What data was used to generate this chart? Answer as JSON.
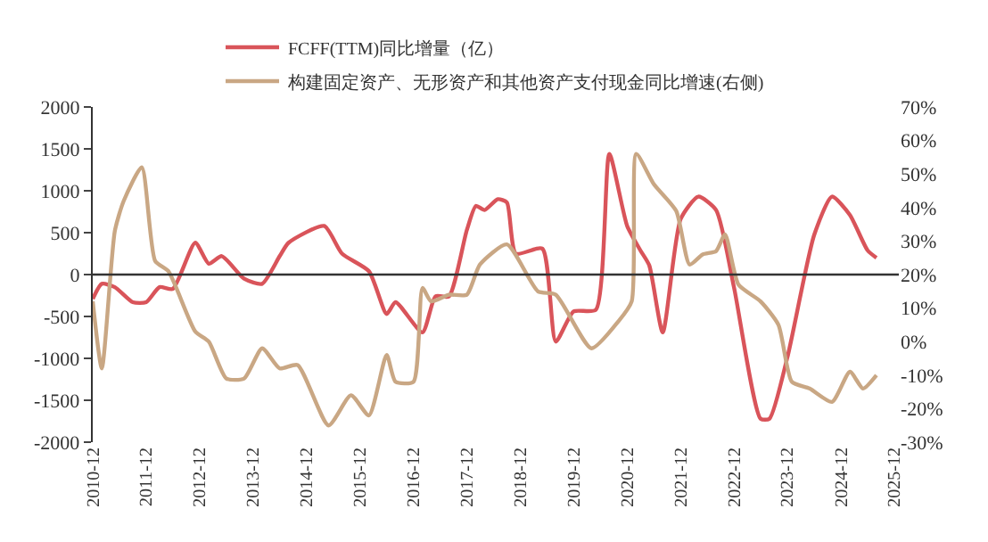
{
  "chart_data": {
    "type": "line",
    "x": [
      "2010-12",
      "2011-02",
      "2011-05",
      "2011-09",
      "2011-12",
      "2012-03",
      "2012-06",
      "2012-11",
      "2013-02",
      "2013-05",
      "2013-10",
      "2014-02",
      "2014-06",
      "2014-08",
      "2015-04",
      "2015-08",
      "2016-02",
      "2016-06",
      "2016-08",
      "2017-02",
      "2017-05",
      "2017-08",
      "2017-12",
      "2018-02",
      "2018-04",
      "2018-07",
      "2018-09",
      "2018-11",
      "2019-05",
      "2019-08",
      "2019-12",
      "2020-05",
      "2020-08",
      "2020-12",
      "2021-03",
      "2021-05",
      "2021-08",
      "2021-12",
      "2022-04",
      "2022-08",
      "2022-12",
      "2023-06",
      "2023-08",
      "2023-12",
      "2024-06",
      "2024-10",
      "2025-02",
      "2025-06",
      "2025-08"
    ],
    "series": [
      {
        "name": "FCFF(TTM)同比增量（亿）",
        "color": "#d9545a",
        "values": [
          -290,
          -110,
          -150,
          -330,
          -330,
          -150,
          -170,
          380,
          130,
          220,
          -50,
          -110,
          220,
          380,
          580,
          250,
          40,
          -470,
          -330,
          -690,
          -260,
          -260,
          530,
          820,
          770,
          900,
          860,
          250,
          310,
          -800,
          -440,
          -420,
          1440,
          580,
          290,
          110,
          -690,
          660,
          930,
          770,
          -150,
          -1720,
          -1720,
          -990,
          470,
          930,
          710,
          290,
          200
        ]
      },
      {
        "name": "构建固定资产、无形资产和其他资产支付现金同比增速(右侧)",
        "color": "#c9a784",
        "axis": "y2",
        "x": [
          "2010-12",
          "2011-02",
          "2011-05",
          "2011-07",
          "2011-11",
          "2012-02",
          "2012-05",
          "2012-11",
          "2013-02",
          "2013-06",
          "2013-10",
          "2014-02",
          "2014-06",
          "2014-10",
          "2015-05",
          "2015-10",
          "2016-02",
          "2016-06",
          "2016-08",
          "2016-12",
          "2017-02",
          "2017-04",
          "2017-08",
          "2017-12",
          "2018-03",
          "2018-09",
          "2019-04",
          "2019-08",
          "2020-04",
          "2020-10",
          "2021-01",
          "2021-02",
          "2021-06",
          "2021-11",
          "2022-02",
          "2022-05",
          "2022-08",
          "2022-10",
          "2023-01",
          "2023-06",
          "2023-10",
          "2024-01",
          "2024-05",
          "2024-10",
          "2025-02",
          "2025-05",
          "2025-08"
        ],
        "values": [
          12,
          -8,
          33,
          42,
          52,
          24,
          21,
          3,
          0,
          -11,
          -11,
          -2,
          -8,
          -7,
          -25,
          -16,
          -22,
          -4,
          -12,
          -12,
          16,
          12,
          14,
          14,
          23,
          29,
          15,
          14,
          -2,
          6,
          12,
          56,
          47,
          39,
          23,
          26,
          27,
          32,
          17,
          12,
          5,
          -12,
          -14,
          -18,
          -9,
          -14,
          -10
        ]
      }
    ],
    "xlim": [
      "2010-12",
      "2026-01"
    ],
    "xticks": [
      "2010-12",
      "2011-12",
      "2012-12",
      "2013-12",
      "2014-12",
      "2015-12",
      "2016-12",
      "2017-12",
      "2018-12",
      "2019-12",
      "2020-12",
      "2021-12",
      "2022-12",
      "2023-12",
      "2024-12",
      "2025-12"
    ],
    "ylim": [
      -2000,
      2000
    ],
    "yticks": [
      -2000,
      -1500,
      -1000,
      -500,
      0,
      500,
      1000,
      1500,
      2000
    ],
    "y2lim": [
      -30,
      70
    ],
    "y2ticks": [
      {
        "value": -30,
        "label": "-30%"
      },
      {
        "value": -20,
        "label": "-20%"
      },
      {
        "value": -10,
        "label": "-10%"
      },
      {
        "value": 0,
        "label": "0%"
      },
      {
        "value": 10,
        "label": "10%"
      },
      {
        "value": 20,
        "label": "20%"
      },
      {
        "value": 30,
        "label": "30%"
      },
      {
        "value": 40,
        "label": "40%"
      },
      {
        "value": 50,
        "label": "50%"
      },
      {
        "value": 60,
        "label": "60%"
      },
      {
        "value": 70,
        "label": "70%"
      }
    ],
    "ref_lines": [
      {
        "axis": "y",
        "value": 0,
        "color": "#333333"
      }
    ],
    "legend": "top",
    "line_style": "solid",
    "marker": "none"
  }
}
